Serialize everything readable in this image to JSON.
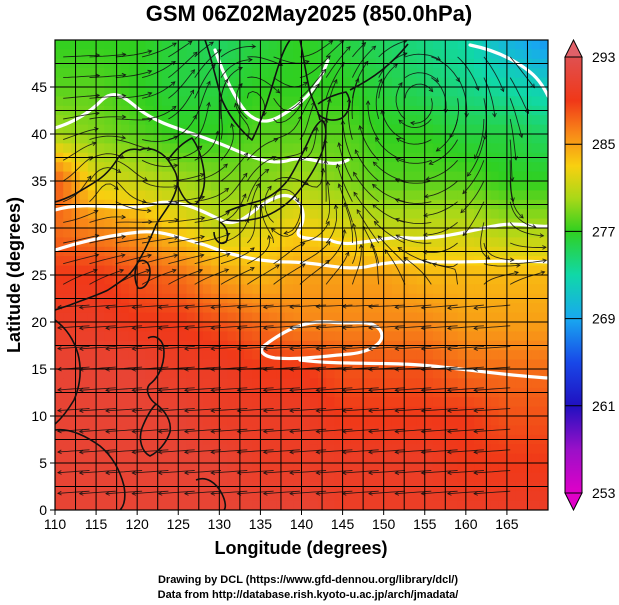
{
  "chart_data": {
    "type": "heatmap",
    "title": "GSM 06Z02May2025 (850.0hPa)",
    "xlabel": "Longitude (degrees)",
    "ylabel": "Latitude  (degrees)",
    "xlim": [
      110,
      170
    ],
    "ylim": [
      0,
      50
    ],
    "x_ticks": [
      110,
      115,
      120,
      125,
      130,
      135,
      140,
      145,
      150,
      155,
      160,
      165
    ],
    "y_ticks": [
      0,
      5,
      10,
      15,
      20,
      25,
      30,
      35,
      40,
      45
    ],
    "colorbar": {
      "ticks": [
        293,
        285,
        277,
        269,
        261,
        253
      ],
      "range": [
        253,
        293
      ],
      "stops": [
        {
          "value": 253,
          "color": "#e000c8"
        },
        {
          "value": 257,
          "color": "#9a10c8"
        },
        {
          "value": 261,
          "color": "#2010c0"
        },
        {
          "value": 265,
          "color": "#1848e8"
        },
        {
          "value": 269,
          "color": "#18a8f0"
        },
        {
          "value": 273,
          "color": "#10d8a8"
        },
        {
          "value": 277,
          "color": "#30d020"
        },
        {
          "value": 280,
          "color": "#a8d818"
        },
        {
          "value": 283,
          "color": "#f8d010"
        },
        {
          "value": 286,
          "color": "#f88818"
        },
        {
          "value": 289,
          "color": "#f03818"
        },
        {
          "value": 293,
          "color": "#e05050"
        }
      ]
    },
    "field": {
      "description_variable": "850hPa temperature (K) with wind streamlines",
      "lats": [
        50,
        45,
        40,
        35,
        30,
        25,
        20,
        15,
        10,
        5,
        0
      ],
      "lons": [
        110,
        115,
        120,
        125,
        130,
        135,
        140,
        145,
        150,
        155,
        160,
        165,
        170
      ],
      "values": [
        [
          277,
          277,
          277,
          276,
          275,
          276,
          277,
          276,
          275,
          274,
          273,
          270,
          268
        ],
        [
          278,
          278,
          277,
          276,
          276,
          277,
          277,
          277,
          276,
          275,
          274,
          273,
          272
        ],
        [
          280,
          279,
          278,
          277,
          277,
          278,
          278,
          278,
          277,
          277,
          276,
          276,
          275
        ],
        [
          288,
          282,
          281,
          280,
          279,
          279,
          280,
          279,
          278,
          278,
          278,
          277,
          277
        ],
        [
          287,
          286,
          285,
          283,
          281,
          282,
          283,
          282,
          281,
          281,
          281,
          280,
          280
        ],
        [
          289,
          289,
          288,
          287,
          285,
          284,
          285,
          285,
          285,
          284,
          284,
          284,
          284
        ],
        [
          290,
          290,
          289,
          289,
          288,
          287,
          286,
          286,
          286,
          286,
          285,
          285,
          285
        ],
        [
          291,
          291,
          291,
          290,
          290,
          289,
          289,
          288,
          288,
          288,
          287,
          287,
          287
        ],
        [
          291,
          291,
          291,
          291,
          290,
          290,
          290,
          289,
          289,
          289,
          289,
          288,
          288
        ],
        [
          291,
          291,
          291,
          291,
          291,
          290,
          290,
          290,
          290,
          290,
          289,
          289,
          289
        ],
        [
          291,
          291,
          291,
          291,
          291,
          291,
          291,
          290,
          290,
          290,
          290,
          290,
          290
        ]
      ]
    }
  },
  "footer": {
    "line1": "Drawing by DCL (https://www.gfd-dennou.org/library/dcl/)",
    "line2": "Data from http://database.rish.kyoto-u.ac.jp/arch/jmadata/"
  }
}
